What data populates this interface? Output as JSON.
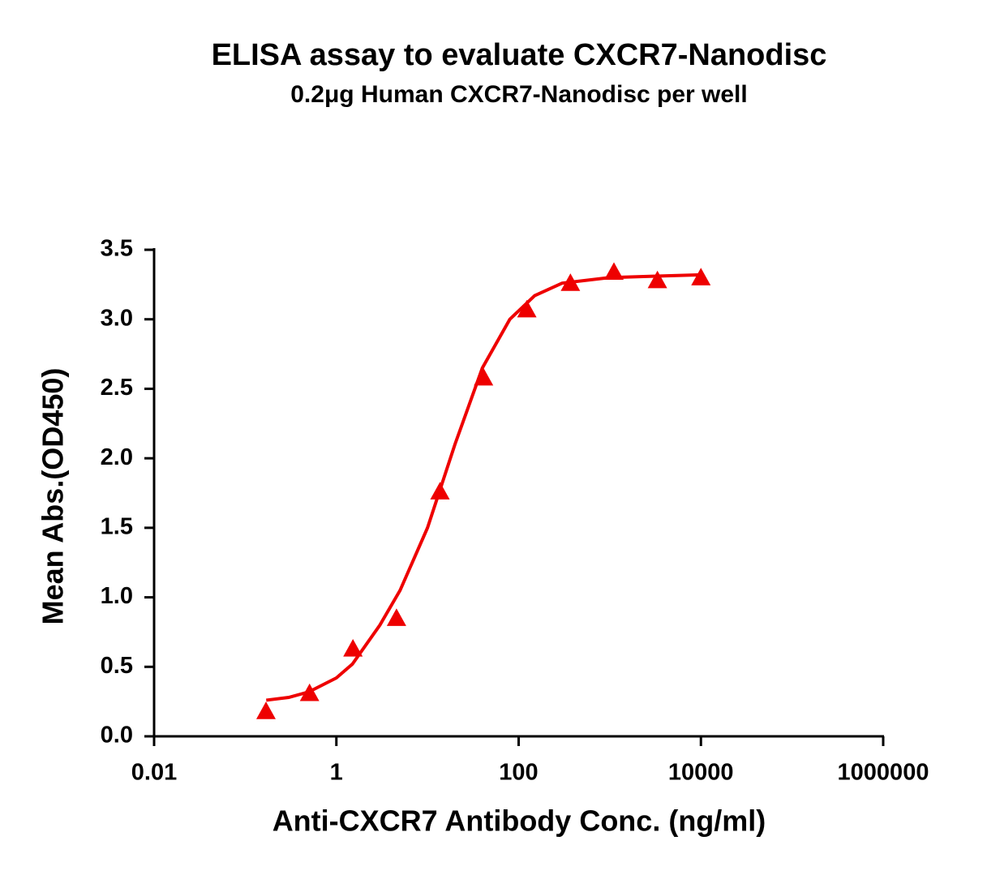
{
  "chart_data": {
    "type": "scatter",
    "title": "ELISA assay to evaluate CXCR7-Nanodisc",
    "subtitle": "0.2μg Human CXCR7-Nanodisc per well",
    "x_label": "Anti-CXCR7 Antibody Conc. (ng/ml)",
    "y_label": "Mean Abs.(OD450)",
    "x_scale": "log",
    "xlim": [
      0.01,
      1000000
    ],
    "xticks": [
      0.01,
      1,
      100,
      10000,
      1000000
    ],
    "ylim": [
      0,
      3.5
    ],
    "yticks": [
      {
        "value": 0,
        "label": "0.0"
      },
      0.5,
      {
        "value": 1,
        "label": "1.0"
      },
      1.5,
      {
        "value": 2,
        "label": "2.0"
      },
      2.5,
      {
        "value": 3,
        "label": "3.0"
      },
      3.5
    ],
    "series": [
      {
        "type": "scatter",
        "marker": "triangle",
        "color": "#ee0000",
        "x": [
          0.169,
          0.508,
          1.52,
          4.57,
          13.7,
          41.2,
          123,
          370,
          1111,
          3333,
          10000
        ],
        "values": [
          0.18,
          0.31,
          0.63,
          0.85,
          1.76,
          2.58,
          3.07,
          3.26,
          3.34,
          3.28,
          3.3
        ]
      },
      {
        "type": "line",
        "color": "#ee0000",
        "x": [
          0.17,
          0.3,
          0.5,
          1,
          1.5,
          3,
          5,
          10,
          20,
          40,
          80,
          150,
          300,
          1000,
          3000,
          10000
        ],
        "values": [
          0.26,
          0.28,
          0.32,
          0.42,
          0.52,
          0.8,
          1.05,
          1.5,
          2.1,
          2.65,
          3.0,
          3.17,
          3.26,
          3.3,
          3.31,
          3.32
        ]
      }
    ]
  }
}
